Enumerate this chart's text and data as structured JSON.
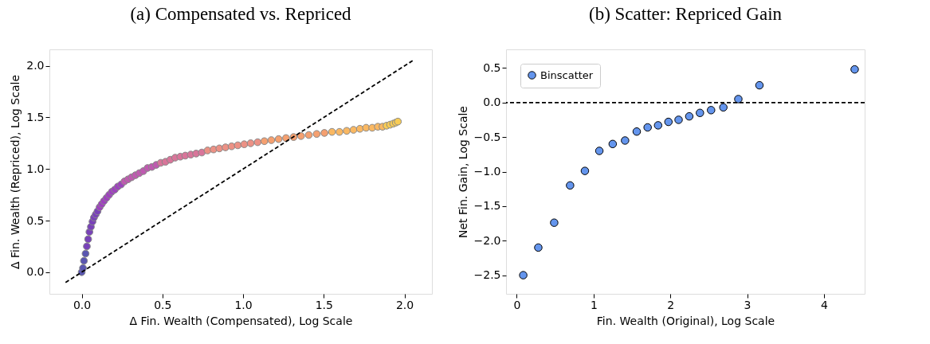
{
  "chart_data": [
    {
      "type": "scatter",
      "title": "(a) Compensated vs. Repriced",
      "xlabel": "Δ Fin. Wealth (Compensated), Log Scale",
      "ylabel": "Δ Fin. Wealth (Repriced), Log Scale",
      "xlim": [
        -0.2,
        2.17
      ],
      "ylim": [
        -0.21,
        2.16
      ],
      "xticks": [
        {
          "value": 0,
          "label": "0.0"
        },
        {
          "value": 0.5,
          "label": "0.5"
        },
        {
          "value": 1,
          "label": "1.0"
        },
        {
          "value": 1.5,
          "label": "1.5"
        },
        {
          "value": 2,
          "label": "2.0"
        }
      ],
      "yticks": [
        {
          "value": 0,
          "label": "0.0"
        },
        {
          "value": 0.5,
          "label": "0.5"
        },
        {
          "value": 1,
          "label": "1.0"
        },
        {
          "value": 1.5,
          "label": "1.5"
        },
        {
          "value": 2,
          "label": "2.0"
        }
      ],
      "grid": false,
      "legend": false,
      "series": [
        {
          "marker": "circle",
          "x": [
            0,
            0.008,
            0.014,
            0.024,
            0.032,
            0.04,
            0.048,
            0.057,
            0.067,
            0.076,
            0.087,
            0.098,
            0.111,
            0.124,
            0.138,
            0.154,
            0.17,
            0.187,
            0.205,
            0.224,
            0.244,
            0.265,
            0.287,
            0.309,
            0.333,
            0.357,
            0.382,
            0.408,
            0.435,
            0.462,
            0.49,
            0.519,
            0.549,
            0.579,
            0.611,
            0.642,
            0.676,
            0.709,
            0.744,
            0.78,
            0.817,
            0.853,
            0.891,
            0.929,
            0.967,
            1.007,
            1.047,
            1.09,
            1.132,
            1.175,
            1.22,
            1.266,
            1.313,
            1.359,
            1.407,
            1.456,
            1.504,
            1.551,
            1.597,
            1.642,
            1.684,
            1.724,
            1.762,
            1.8,
            1.835,
            1.864,
            1.889,
            1.911,
            1.93,
            1.946,
            1.959
          ],
          "values": [
            0,
            0.04,
            0.11,
            0.18,
            0.25,
            0.32,
            0.39,
            0.44,
            0.49,
            0.53,
            0.56,
            0.59,
            0.63,
            0.66,
            0.69,
            0.72,
            0.75,
            0.78,
            0.8,
            0.83,
            0.85,
            0.88,
            0.9,
            0.92,
            0.94,
            0.96,
            0.98,
            1.01,
            1.02,
            1.04,
            1.06,
            1.07,
            1.09,
            1.11,
            1.12,
            1.13,
            1.14,
            1.15,
            1.16,
            1.18,
            1.19,
            1.2,
            1.21,
            1.22,
            1.23,
            1.24,
            1.25,
            1.26,
            1.27,
            1.28,
            1.29,
            1.3,
            1.31,
            1.32,
            1.33,
            1.34,
            1.35,
            1.36,
            1.36,
            1.37,
            1.38,
            1.39,
            1.4,
            1.4,
            1.41,
            1.41,
            1.42,
            1.43,
            1.44,
            1.45,
            1.46
          ],
          "colors": [
            "#5a56b0",
            "#5a56b0",
            "#5a56b0",
            "#5a56b0",
            "#7942b9",
            "#7942b9",
            "#7942b9",
            "#7942b9",
            "#7942b9",
            "#7942b9",
            "#7942b9",
            "#7942b9",
            "#9e42be",
            "#9e42be",
            "#9e42be",
            "#9e42be",
            "#9e42be",
            "#9e42be",
            "#9e42be",
            "#9e42be",
            "#9e42be",
            "#bf5ab0",
            "#bf5ab0",
            "#bf5ab0",
            "#bf5ab0",
            "#bf5ab0",
            "#bf5ab0",
            "#bf5ab0",
            "#bf5ab0",
            "#bf5ab0",
            "#d9759a",
            "#d9759a",
            "#d9759a",
            "#d9759a",
            "#d9759a",
            "#d9759a",
            "#d9759a",
            "#d9759a",
            "#d9759a",
            "#ec9185",
            "#ec9185",
            "#ec9185",
            "#ec9185",
            "#ec9185",
            "#ec9185",
            "#ec9185",
            "#ec9185",
            "#ec9185",
            "#f5a070",
            "#f5a070",
            "#f5a070",
            "#f5a070",
            "#f5a070",
            "#f5a070",
            "#f5a070",
            "#f5a070",
            "#f5a070",
            "#fab862",
            "#fab862",
            "#fab862",
            "#fab862",
            "#fab862",
            "#fab862",
            "#fab862",
            "#fab862",
            "#fab862",
            "#f8cc55",
            "#f8cc55",
            "#f8cc55",
            "#f8cc55",
            "#f8cc55"
          ]
        },
        {
          "type": "line",
          "x": [
            -0.1,
            2.05
          ],
          "values": [
            -0.1,
            2.05
          ],
          "color": "#000000",
          "line_style": "dashed"
        }
      ]
    },
    {
      "type": "scatter",
      "title": "(b) Scatter: Repriced Gain",
      "xlabel": "Fin. Wealth (Original), Log Scale",
      "ylabel": "Net Fin. Gain, Log Scale",
      "xlim": [
        -0.14,
        4.53
      ],
      "ylim": [
        -2.77,
        0.77
      ],
      "xticks": [
        0,
        1,
        2,
        3,
        4
      ],
      "yticks": [
        {
          "value": -2.5,
          "label": "−2.5"
        },
        {
          "value": -2,
          "label": "−2.0"
        },
        {
          "value": -1.5,
          "label": "−1.5"
        },
        {
          "value": -1,
          "label": "−1.0"
        },
        {
          "value": -0.5,
          "label": "−0.5"
        },
        {
          "value": 0,
          "label": "0.0"
        },
        {
          "value": 0.5,
          "label": "0.5"
        }
      ],
      "grid": false,
      "legend": "top left",
      "marker": "circle",
      "series": [
        {
          "name": "Binscatter",
          "color": "#6495ed",
          "x": [
            0.084,
            0.28,
            0.487,
            0.694,
            0.887,
            1.075,
            1.249,
            1.41,
            1.562,
            1.704,
            1.84,
            1.975,
            2.107,
            2.246,
            2.385,
            2.53,
            2.69,
            2.885,
            3.16,
            4.4
          ],
          "values": [
            -2.5,
            -2.1,
            -1.74,
            -1.2,
            -0.99,
            -0.7,
            -0.6,
            -0.55,
            -0.42,
            -0.36,
            -0.33,
            -0.28,
            -0.25,
            -0.2,
            -0.15,
            -0.11,
            -0.07,
            0.05,
            0.25,
            0.48
          ]
        }
      ],
      "ref_lines": [
        {
          "axis": "y",
          "value": 0,
          "color": "#000000",
          "line_style": "dashed"
        }
      ]
    }
  ]
}
